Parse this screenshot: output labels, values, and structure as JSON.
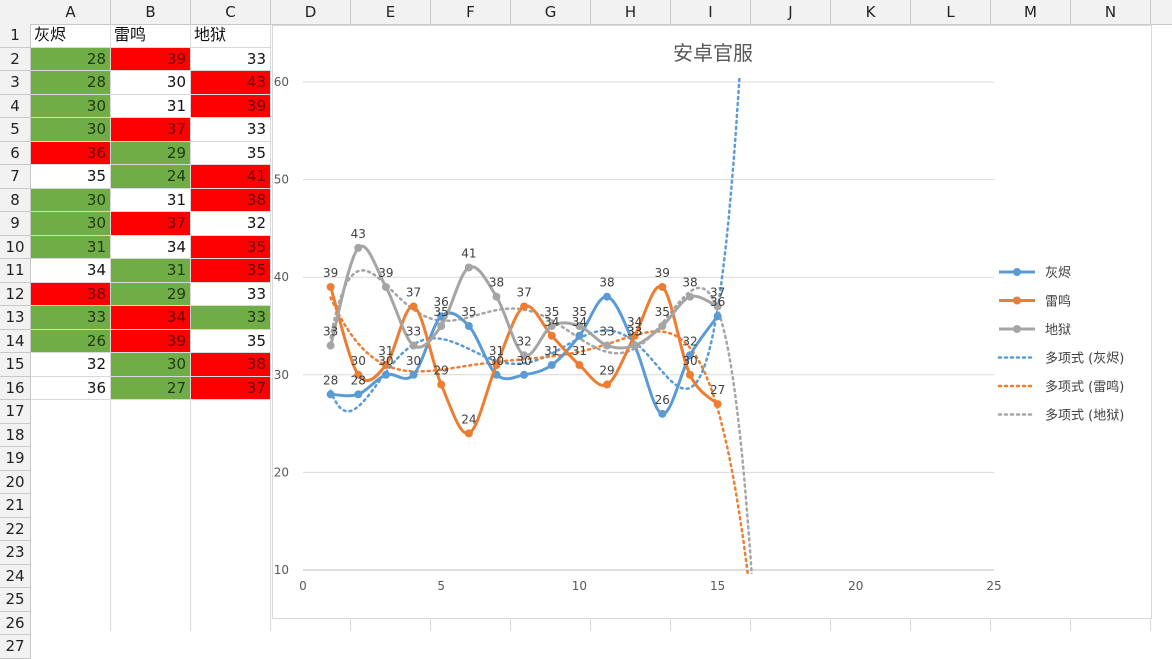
{
  "sheet": {
    "columns": [
      "A",
      "B",
      "C",
      "D",
      "E",
      "F",
      "G",
      "H",
      "I",
      "J",
      "K",
      "L",
      "M",
      "N"
    ],
    "rows": [
      "1",
      "2",
      "3",
      "4",
      "5",
      "6",
      "7",
      "8",
      "9",
      "10",
      "11",
      "12",
      "13",
      "14",
      "15",
      "16",
      "17",
      "18",
      "19",
      "20",
      "21",
      "22",
      "23",
      "24",
      "25",
      "26",
      "27"
    ],
    "headers": [
      "灰烬",
      "雷鸣",
      "地狱"
    ],
    "data": [
      [
        28,
        39,
        33
      ],
      [
        28,
        30,
        43
      ],
      [
        30,
        31,
        39
      ],
      [
        30,
        37,
        33
      ],
      [
        36,
        29,
        35
      ],
      [
        35,
        24,
        41
      ],
      [
        30,
        31,
        38
      ],
      [
        30,
        37,
        32
      ],
      [
        31,
        34,
        35
      ],
      [
        34,
        31,
        35
      ],
      [
        38,
        29,
        33
      ],
      [
        33,
        34,
        33
      ],
      [
        26,
        39,
        35
      ],
      [
        32,
        30,
        38
      ],
      [
        36,
        27,
        37
      ]
    ],
    "fills": [
      [
        "green",
        "red",
        "none"
      ],
      [
        "green",
        "none",
        "red"
      ],
      [
        "green",
        "none",
        "red"
      ],
      [
        "green",
        "red",
        "none"
      ],
      [
        "red",
        "green",
        "none"
      ],
      [
        "none",
        "green",
        "red"
      ],
      [
        "green",
        "none",
        "red"
      ],
      [
        "green",
        "red",
        "none"
      ],
      [
        "green",
        "none",
        "red"
      ],
      [
        "none",
        "green",
        "red"
      ],
      [
        "red",
        "green",
        "none"
      ],
      [
        "green",
        "red",
        "green"
      ],
      [
        "green",
        "red",
        "none"
      ],
      [
        "none",
        "green",
        "red"
      ],
      [
        "none",
        "green",
        "red"
      ]
    ],
    "colors": {
      "red": "#ff0000",
      "green": "#70ad47"
    }
  },
  "chart_data": {
    "type": "line",
    "title": "安卓官服",
    "x": [
      1,
      2,
      3,
      4,
      5,
      6,
      7,
      8,
      9,
      10,
      11,
      12,
      13,
      14,
      15
    ],
    "xlim": [
      0,
      25
    ],
    "ylim": [
      10,
      60
    ],
    "xticks": [
      "0",
      "5",
      "10",
      "15",
      "20",
      "25"
    ],
    "yticks": [
      "10",
      "20",
      "30",
      "40",
      "50",
      "60"
    ],
    "series": [
      {
        "name": "灰烬",
        "color": "#5b9bd5",
        "values": [
          28,
          28,
          30,
          30,
          36,
          35,
          30,
          30,
          31,
          34,
          38,
          33,
          26,
          32,
          36
        ]
      },
      {
        "name": "雷鸣",
        "color": "#ed7d31",
        "values": [
          39,
          30,
          31,
          37,
          29,
          24,
          31,
          37,
          34,
          31,
          29,
          34,
          39,
          30,
          27
        ]
      },
      {
        "name": "地狱",
        "color": "#a5a5a5",
        "values": [
          33,
          43,
          39,
          33,
          35,
          41,
          38,
          32,
          35,
          35,
          33,
          33,
          35,
          38,
          37
        ]
      }
    ],
    "trendlines": [
      {
        "name": "多项式 (灰烬)",
        "color": "#5b9bd5"
      },
      {
        "name": "多项式 (雷鸣)",
        "color": "#ed7d31"
      },
      {
        "name": "多项式 (地狱)",
        "color": "#a5a5a5"
      }
    ],
    "grid": true,
    "legend": "right"
  }
}
